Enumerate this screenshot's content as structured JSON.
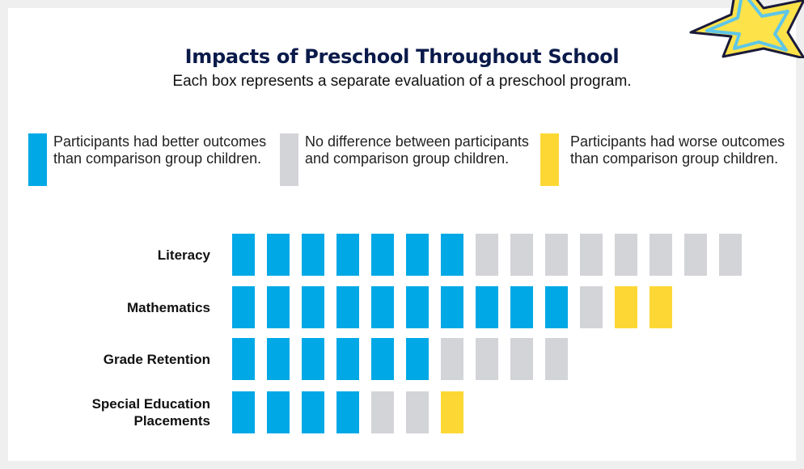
{
  "chart_data": {
    "type": "unit",
    "title": "Impacts of Preschool Throughout School",
    "subtitle": "Each box represents a separate evaluation of a preschool program.",
    "categories": [
      "Literacy",
      "Mathematics",
      "Grade Retention",
      "Special Education Placements"
    ],
    "series": [
      {
        "name": "Participants had better outcomes than comparison group children.",
        "color": "#00a8e6",
        "values": [
          7,
          10,
          6,
          4
        ]
      },
      {
        "name": "No difference between participants and comparison group children.",
        "color": "#d3d4d8",
        "values": [
          8,
          1,
          4,
          2
        ]
      },
      {
        "name": "Participants had worse outcomes than comparison group children.",
        "color": "#fdd835",
        "values": [
          0,
          2,
          0,
          1
        ]
      }
    ]
  }
}
